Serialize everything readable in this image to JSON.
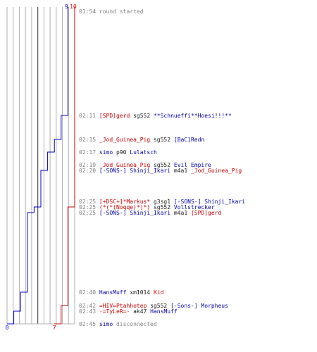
{
  "chart_data": {
    "type": "line",
    "series": [
      {
        "color": "#0000cc",
        "start_label": "9",
        "end_label": "0",
        "values": [
          9,
          9,
          8,
          7,
          6,
          6,
          5,
          5,
          4,
          3,
          2,
          2,
          1,
          1,
          0
        ]
      },
      {
        "color": "#cc0000",
        "start_label": "10",
        "end_label": "7",
        "values": [
          10,
          10,
          10,
          10,
          10,
          10,
          10,
          10,
          9,
          9,
          9,
          8,
          8,
          7,
          7
        ]
      }
    ],
    "grid_lines": 12
  },
  "log": [
    {
      "time": "01:54",
      "parts": [
        {
          "text": "round started",
          "style": "gray"
        }
      ]
    },
    {
      "time": "02:11",
      "parts": [
        {
          "text": "[SPD]gerd",
          "style": "red"
        },
        {
          "text": " sg552 ",
          "style": "dark"
        },
        {
          "text": "**Schnueffi**Hoesi!!!**",
          "style": "blue"
        }
      ]
    },
    {
      "time": "02:15",
      "parts": [
        {
          "text": "_Jod_Guinea_Pig",
          "style": "red"
        },
        {
          "text": " sg552 ",
          "style": "dark"
        },
        {
          "text": "[BaC]Redn",
          "style": "blue"
        }
      ]
    },
    {
      "time": "02:17",
      "parts": [
        {
          "text": "simo",
          "style": "blue"
        },
        {
          "text": " p90 ",
          "style": "dark"
        },
        {
          "text": "Lulatsch",
          "style": "blue"
        }
      ]
    },
    {
      "time": "02:19",
      "parts": [
        {
          "text": "_Jod_Guinea_Pig",
          "style": "red"
        },
        {
          "text": " sg552 ",
          "style": "dark"
        },
        {
          "text": "Evil Empire",
          "style": "blue"
        }
      ]
    },
    {
      "time": "02:20",
      "parts": [
        {
          "text": "[-SONS-] Shinji_Ikari",
          "style": "blue"
        },
        {
          "text": " m4a1 ",
          "style": "dark"
        },
        {
          "text": "_Jod_Guinea_Pig",
          "style": "red"
        }
      ]
    },
    {
      "time": "02:25",
      "parts": [
        {
          "text": "[+DSC+]*Markus*",
          "style": "red"
        },
        {
          "text": " g3sg1 ",
          "style": "dark"
        },
        {
          "text": "[-SONS-] Shinji_Ikari",
          "style": "blue"
        }
      ]
    },
    {
      "time": "02:25",
      "parts": [
        {
          "text": "(*(*(Noqqe)*)*)",
          "style": "red"
        },
        {
          "text": " sg552 ",
          "style": "dark"
        },
        {
          "text": "Vollstrecker",
          "style": "blue"
        }
      ]
    },
    {
      "time": "02:25",
      "parts": [
        {
          "text": "[-SONS-] Shinji_Ikari",
          "style": "blue"
        },
        {
          "text": " m4a1 ",
          "style": "dark"
        },
        {
          "text": "[SPD]gerd",
          "style": "red"
        }
      ]
    },
    {
      "time": "02:40",
      "parts": [
        {
          "text": "HansMuff",
          "style": "blue"
        },
        {
          "text": " xm1014 ",
          "style": "dark"
        },
        {
          "text": "Kid",
          "style": "red"
        }
      ]
    },
    {
      "time": "02:42",
      "parts": [
        {
          "text": "=HIV=Ptahhotep",
          "style": "red"
        },
        {
          "text": " sg552 ",
          "style": "dark"
        },
        {
          "text": "[-Sons-] Morpheus",
          "style": "blue"
        }
      ]
    },
    {
      "time": "02:43",
      "parts": [
        {
          "text": "-=TyLeR=-",
          "style": "red"
        },
        {
          "text": " ak47 ",
          "style": "dark"
        },
        {
          "text": "HansMuff",
          "style": "blue"
        }
      ]
    },
    {
      "time": "02:45",
      "parts": [
        {
          "text": "simo",
          "style": "blue"
        },
        {
          "text": " disconnected",
          "style": "gray"
        }
      ]
    }
  ]
}
